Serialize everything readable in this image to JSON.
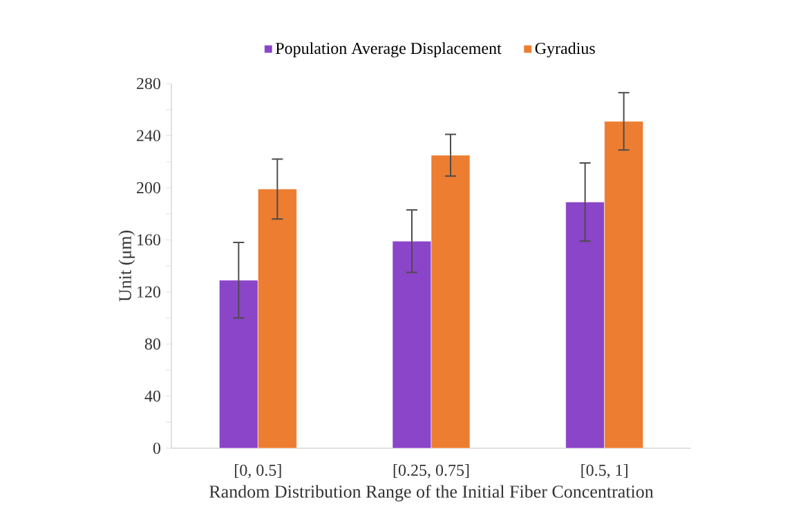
{
  "chart_data": {
    "type": "bar",
    "categories": [
      "[0, 0.5]",
      "[0.25, 0.75]",
      "[0.5, 1]"
    ],
    "series": [
      {
        "name": "Population Average Displacement",
        "color": "#8b45c8",
        "values": [
          129,
          159,
          189
        ],
        "errors": [
          29,
          24,
          30
        ]
      },
      {
        "name": "Gyradius",
        "color": "#ed7d31",
        "values": [
          199,
          225,
          251
        ],
        "errors": [
          23,
          16,
          22
        ]
      }
    ],
    "xlabel": "Random Distribution Range of the Initial Fiber Concentration",
    "ylabel": "Unit (μm)",
    "ylim": [
      0,
      280
    ],
    "yticks": [
      0,
      {
        "value": 20,
        "label": null
      },
      40,
      {
        "value": 60,
        "label": null
      },
      80,
      {
        "value": 100,
        "label": null
      },
      120,
      {
        "value": 140,
        "label": null
      },
      160,
      {
        "value": 180,
        "label": null
      },
      200,
      {
        "value": 220,
        "label": null
      },
      240,
      {
        "value": 260,
        "label": null
      },
      280
    ],
    "legend": "top"
  }
}
